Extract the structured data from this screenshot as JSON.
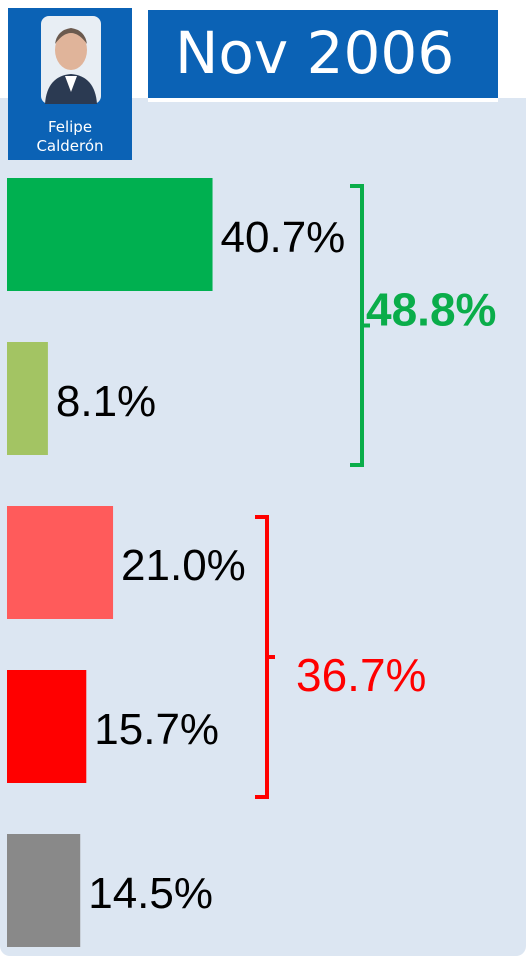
{
  "chart_data": {
    "type": "bar",
    "orientation": "horizontal",
    "title": "Nov 2006",
    "person": "Felipe Calderón",
    "values": [
      40.7,
      8.1,
      21.0,
      15.7,
      14.5
    ],
    "value_labels": [
      "40.7%",
      "8.1%",
      "21.0%",
      "15.7%",
      "14.5%"
    ],
    "colors": [
      "#00b050",
      "#a3c463",
      "#ff5b5b",
      "#ff0000",
      "#898989"
    ],
    "annotations": [
      {
        "text": "48.8%",
        "color": "#0aad4a",
        "bold": true
      },
      {
        "text": "36.7%",
        "color": "#ff0000",
        "bold": false
      }
    ]
  }
}
